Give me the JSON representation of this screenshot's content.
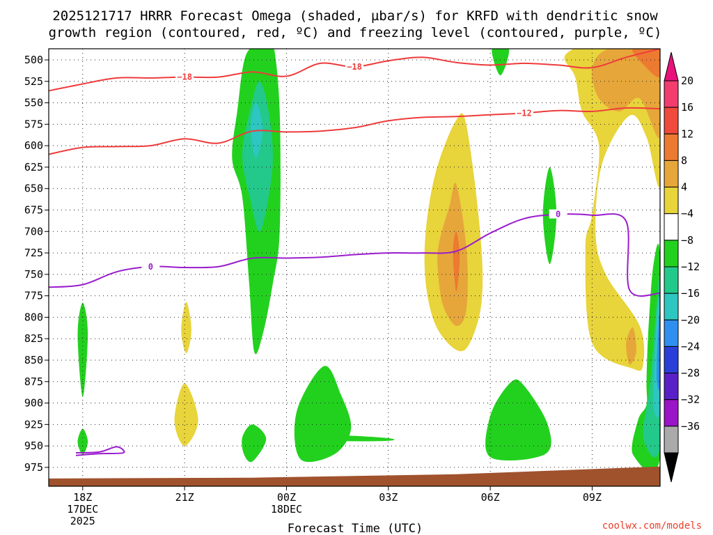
{
  "chart_data": {
    "type": "heatmap",
    "title_line1": "2025121717 HRRR Forecast Omega (shaded, µbar/s) for KRFD with dendritic snow",
    "title_line2": "growth region (contoured, red, ºC) and freezing level (contoured, purple, ºC)",
    "xlabel": "Forecast Time (UTC)",
    "credit": "coolwx.com/models",
    "y_ticks": [
      500,
      525,
      550,
      575,
      600,
      625,
      650,
      675,
      700,
      725,
      750,
      775,
      800,
      825,
      850,
      875,
      900,
      925,
      950,
      975
    ],
    "y_axis": {
      "units": "hPa",
      "range": [
        487,
        997
      ]
    },
    "x_axis": {
      "units": "hours after 17Z 17DEC",
      "range": [
        0,
        18
      ]
    },
    "x_ticks": [
      {
        "hour": 1,
        "label": "18Z",
        "date1": "17DEC",
        "date2": "2025"
      },
      {
        "hour": 4,
        "label": "21Z",
        "date1": "",
        "date2": ""
      },
      {
        "hour": 7,
        "label": "00Z",
        "date1": "18DEC",
        "date2": ""
      },
      {
        "hour": 10,
        "label": "03Z",
        "date1": "",
        "date2": ""
      },
      {
        "hour": 13,
        "label": "06Z",
        "date1": "",
        "date2": ""
      },
      {
        "hour": 16,
        "label": "09Z",
        "date1": "",
        "date2": ""
      }
    ],
    "colorbar": {
      "labels": [
        "20",
        "16",
        "12",
        "8",
        "4",
        "−4",
        "−8",
        "−12",
        "−16",
        "−20",
        "−24",
        "−28",
        "−32",
        "−36"
      ],
      "colors_top_to_bottom": [
        "#f23d6e",
        "#f04a3c",
        "#ec7a30",
        "#e6a63a",
        "#e8d43b",
        "#ffffff",
        "#22d11e",
        "#22c98a",
        "#2ec6c0",
        "#2f8ff0",
        "#2a3fd8",
        "#5a20c8",
        "#9a14c8",
        "#aaaaaa"
      ],
      "top_arrow_color": "#e8127a",
      "bottom_arrow_color": "#000000"
    },
    "shaded_regions": [
      {
        "name": "upward-motion-column-0030Z",
        "level": -4,
        "color": "#22d11e",
        "points": [
          [
            5.4,
            615
          ],
          [
            5.55,
            560
          ],
          [
            5.8,
            495
          ],
          [
            6.3,
            480
          ],
          [
            6.6,
            480
          ],
          [
            6.8,
            560
          ],
          [
            6.8,
            700
          ],
          [
            6.6,
            760
          ],
          [
            6.3,
            820
          ],
          [
            6.05,
            840
          ],
          [
            5.9,
            760
          ],
          [
            5.7,
            660
          ]
        ]
      },
      {
        "name": "upward-motion-core-0030Z",
        "level": -8,
        "color": "#22c98a",
        "points": [
          [
            5.7,
            612
          ],
          [
            5.95,
            555
          ],
          [
            6.2,
            525
          ],
          [
            6.45,
            555
          ],
          [
            6.6,
            612
          ],
          [
            6.45,
            665
          ],
          [
            6.2,
            700
          ],
          [
            5.95,
            665
          ]
        ]
      },
      {
        "name": "upward-motion-inner-0030Z",
        "level": -12,
        "color": "#2ec6c0",
        "points": [
          [
            5.95,
            580
          ],
          [
            6.1,
            550
          ],
          [
            6.3,
            580
          ],
          [
            6.1,
            615
          ]
        ]
      },
      {
        "name": "downward-motion-0500Z",
        "level": 4,
        "color": "#e8d43b",
        "points": [
          [
            11.1,
            700
          ],
          [
            11.4,
            630
          ],
          [
            12.0,
            570
          ],
          [
            12.3,
            577
          ],
          [
            12.7,
            700
          ],
          [
            12.75,
            780
          ],
          [
            12.4,
            830
          ],
          [
            12.0,
            838
          ],
          [
            11.4,
            810
          ],
          [
            11.1,
            760
          ]
        ]
      },
      {
        "name": "downward-motion-core-0500Z",
        "level": 8,
        "color": "#e6a63a",
        "points": [
          [
            11.5,
            712
          ],
          [
            11.8,
            670
          ],
          [
            12.0,
            645
          ],
          [
            12.3,
            720
          ],
          [
            12.3,
            790
          ],
          [
            12.0,
            810
          ],
          [
            11.6,
            785
          ],
          [
            11.45,
            740
          ]
        ]
      },
      {
        "name": "downward-motion-peak-0500Z",
        "level": 12,
        "color": "#ec7a30",
        "points": [
          [
            11.9,
            725
          ],
          [
            12.0,
            700
          ],
          [
            12.1,
            730
          ],
          [
            12.0,
            770
          ]
        ]
      },
      {
        "name": "downward-motion-east",
        "level": 4,
        "color": "#e8d43b",
        "points": [
          [
            15.2,
            495
          ],
          [
            16.1,
            480
          ],
          [
            18.0,
            480
          ],
          [
            18.0,
            645
          ],
          [
            17.6,
            590
          ],
          [
            17.1,
            565
          ],
          [
            16.3,
            620
          ],
          [
            16.1,
            700
          ],
          [
            16.4,
            750
          ],
          [
            17.4,
            810
          ],
          [
            17.5,
            855
          ],
          [
            17.2,
            860
          ],
          [
            16.0,
            830
          ],
          [
            15.8,
            720
          ],
          [
            16.0,
            680
          ],
          [
            16.2,
            600
          ],
          [
            15.7,
            560
          ],
          [
            15.5,
            520
          ]
        ]
      },
      {
        "name": "downward-motion-east-core",
        "level": 8,
        "color": "#e6a63a",
        "points": [
          [
            16.0,
            510
          ],
          [
            16.5,
            487
          ],
          [
            18.0,
            487
          ],
          [
            18.0,
            590
          ],
          [
            17.4,
            545
          ],
          [
            16.8,
            560
          ],
          [
            16.2,
            545
          ]
        ]
      },
      {
        "name": "downward-motion-east-peak",
        "level": 12,
        "color": "#ec7a30",
        "points": [
          [
            17.2,
            487
          ],
          [
            18.0,
            487
          ],
          [
            18.0,
            520
          ],
          [
            17.5,
            505
          ]
        ]
      },
      {
        "name": "downward-motion-east-low",
        "level": 8,
        "color": "#e6a63a",
        "points": [
          [
            17.0,
            830
          ],
          [
            17.2,
            812
          ],
          [
            17.3,
            840
          ],
          [
            17.1,
            855
          ]
        ]
      },
      {
        "name": "upward-motion-top-0630Z",
        "level": -4,
        "color": "#22d11e",
        "points": [
          [
            13.05,
            487
          ],
          [
            13.55,
            487
          ],
          [
            13.3,
            518
          ]
        ]
      },
      {
        "name": "upward-motion-0700Z",
        "level": -4,
        "color": "#22d11e",
        "points": [
          [
            14.55,
            680
          ],
          [
            14.75,
            625
          ],
          [
            14.95,
            680
          ],
          [
            14.75,
            738
          ]
        ]
      },
      {
        "name": "upward-motion-low-east",
        "level": -4,
        "color": "#22d11e",
        "points": [
          [
            17.2,
            960
          ],
          [
            17.35,
            920
          ],
          [
            17.6,
            902
          ],
          [
            17.6,
            875
          ],
          [
            17.65,
            820
          ],
          [
            17.8,
            740
          ],
          [
            18.0,
            732
          ],
          [
            18.0,
            963
          ]
        ]
      },
      {
        "name": "upward-motion-low-east-core",
        "level": -8,
        "color": "#22c98a",
        "points": [
          [
            17.5,
            940
          ],
          [
            17.7,
            880
          ],
          [
            17.9,
            785
          ],
          [
            18.0,
            760
          ],
          [
            18.0,
            950
          ]
        ]
      },
      {
        "name": "upward-motion-low-east-inner",
        "level": -12,
        "color": "#2ec6c0",
        "points": [
          [
            17.8,
            900
          ],
          [
            17.9,
            800
          ],
          [
            18.0,
            785
          ],
          [
            18.0,
            905
          ]
        ]
      },
      {
        "name": "upward-motion-low-east-max",
        "level": -16,
        "color": "#2f8ff0",
        "points": [
          [
            17.9,
            870
          ],
          [
            17.95,
            810
          ],
          [
            18.0,
            800
          ],
          [
            18.0,
            880
          ]
        ]
      },
      {
        "name": "upward-motion-low-0100Z",
        "level": -4,
        "color": "#22d11e",
        "points": [
          [
            7.3,
            910
          ],
          [
            8.1,
            857
          ],
          [
            8.6,
            890
          ],
          [
            8.9,
            930
          ],
          [
            8.4,
            960
          ],
          [
            7.4,
            965
          ]
        ]
      },
      {
        "name": "upward-motion-tail-0200Z",
        "level": -4,
        "color": "#22d11e",
        "points": [
          [
            8.6,
            938
          ],
          [
            10.0,
            941
          ],
          [
            10.0,
            944
          ],
          [
            8.6,
            944
          ]
        ]
      },
      {
        "name": "upward-motion-low-0630Z",
        "level": -4,
        "color": "#22d11e",
        "points": [
          [
            13.0,
            915
          ],
          [
            13.6,
            876
          ],
          [
            14.0,
            880
          ],
          [
            14.7,
            926
          ],
          [
            14.6,
            960
          ],
          [
            13.0,
            963
          ]
        ]
      },
      {
        "name": "upward-motion-low-2330Z",
        "level": -4,
        "color": "#22d11e",
        "points": [
          [
            5.7,
            940
          ],
          [
            6.0,
            925
          ],
          [
            6.4,
            942
          ],
          [
            6.0,
            968
          ],
          [
            5.75,
            960
          ]
        ]
      },
      {
        "name": "upward-motion-low-1800Z-a",
        "level": -4,
        "color": "#22d11e",
        "points": [
          [
            0.85,
            820
          ],
          [
            1.0,
            783
          ],
          [
            1.15,
            820
          ],
          [
            1.0,
            893
          ]
        ]
      },
      {
        "name": "upward-motion-low-1800Z-b",
        "level": -4,
        "color": "#22d11e",
        "points": [
          [
            0.85,
            945
          ],
          [
            1.0,
            930
          ],
          [
            1.15,
            945
          ],
          [
            1.0,
            960
          ]
        ]
      },
      {
        "name": "downward-motion-2100Z-a",
        "level": 4,
        "color": "#e8d43b",
        "points": [
          [
            3.9,
            815
          ],
          [
            4.05,
            782
          ],
          [
            4.2,
            815
          ],
          [
            4.05,
            842
          ]
        ]
      },
      {
        "name": "downward-motion-2100Z-b",
        "level": 4,
        "color": "#e8d43b",
        "points": [
          [
            3.7,
            920
          ],
          [
            4.0,
            877
          ],
          [
            4.4,
            920
          ],
          [
            4.0,
            950
          ]
        ]
      }
    ],
    "contours": [
      {
        "name": "dendritic-growth-minus-18",
        "value": "−18",
        "color": "#ee3b3b",
        "label_at": [
          [
            4.0,
            520
          ],
          [
            9.0,
            508
          ]
        ],
        "points": [
          [
            0,
            536
          ],
          [
            1.0,
            528
          ],
          [
            2.0,
            521
          ],
          [
            3.0,
            521
          ],
          [
            4.0,
            520
          ],
          [
            5.0,
            520
          ],
          [
            6.0,
            514
          ],
          [
            7.0,
            519
          ],
          [
            8.0,
            504
          ],
          [
            9.0,
            508
          ],
          [
            10.0,
            501
          ],
          [
            11.0,
            497
          ],
          [
            12.0,
            503
          ],
          [
            13.0,
            506
          ],
          [
            14.0,
            504
          ],
          [
            15.0,
            506
          ],
          [
            16.0,
            509
          ],
          [
            17.0,
            497
          ],
          [
            18.0,
            487
          ]
        ]
      },
      {
        "name": "dendritic-growth-minus-12",
        "value": "−12",
        "color": "#ee3b3b",
        "label_at": [
          [
            14.0,
            562
          ]
        ],
        "points": [
          [
            0,
            610
          ],
          [
            1.0,
            602
          ],
          [
            2.0,
            601
          ],
          [
            3.0,
            600
          ],
          [
            4.0,
            592
          ],
          [
            5.0,
            597
          ],
          [
            6.0,
            583
          ],
          [
            7.0,
            584
          ],
          [
            8.0,
            583
          ],
          [
            9.0,
            579
          ],
          [
            10.0,
            571
          ],
          [
            11.0,
            567
          ],
          [
            12.0,
            566
          ],
          [
            13.0,
            564
          ],
          [
            14.0,
            562
          ],
          [
            15.0,
            559
          ],
          [
            16.0,
            560
          ],
          [
            17.0,
            556
          ],
          [
            18.0,
            557
          ]
        ]
      },
      {
        "name": "freezing-level-0C",
        "value": "0",
        "color": "#9a1ccc",
        "label_at": [
          [
            3.0,
            741
          ],
          [
            15.0,
            680
          ]
        ],
        "points": [
          [
            0,
            765
          ],
          [
            1.0,
            762
          ],
          [
            2.0,
            747
          ],
          [
            3.0,
            741
          ],
          [
            4.0,
            742
          ],
          [
            5.0,
            741
          ],
          [
            6.0,
            731
          ],
          [
            7.0,
            731
          ],
          [
            8.0,
            730
          ],
          [
            9.0,
            727
          ],
          [
            10.0,
            725
          ],
          [
            11.0,
            725
          ],
          [
            12.0,
            723
          ],
          [
            13.0,
            702
          ],
          [
            14.0,
            685
          ],
          [
            15.0,
            680
          ],
          [
            16.0,
            681
          ],
          [
            17.0,
            688
          ],
          [
            17.1,
            768
          ],
          [
            18.0,
            772
          ]
        ]
      },
      {
        "name": "freezing-level-low-loop",
        "value": "",
        "color": "#9a1ccc",
        "label_at": [],
        "points": [
          [
            0.8,
            958
          ],
          [
            1.5,
            957
          ],
          [
            2.0,
            951
          ],
          [
            2.2,
            958
          ],
          [
            1.5,
            959
          ],
          [
            0.8,
            961
          ]
        ]
      }
    ],
    "terrain": {
      "color": "#a0522d",
      "surface_pressure": [
        [
          0,
          988
        ],
        [
          6,
          987
        ],
        [
          12,
          983
        ],
        [
          16,
          977
        ],
        [
          18,
          974
        ]
      ]
    }
  }
}
